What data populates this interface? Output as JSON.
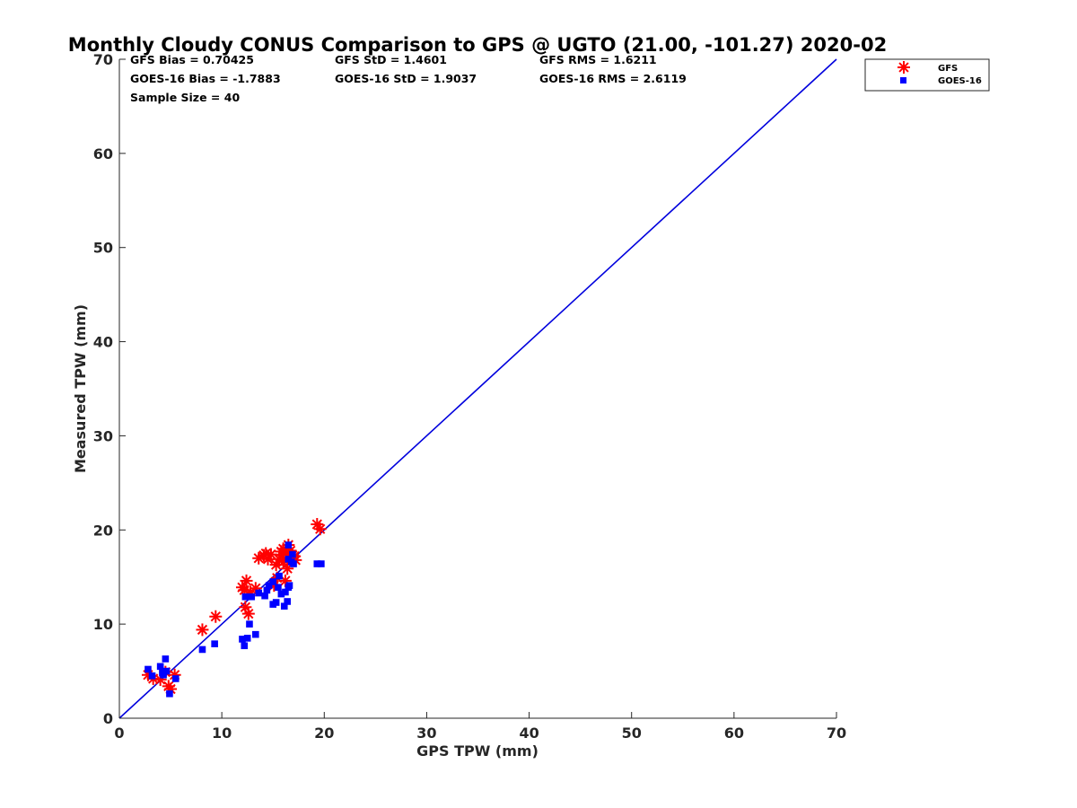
{
  "chart_data": {
    "type": "scatter",
    "title": "Monthly Cloudy CONUS Comparison to GPS @ UGTO (21.00, -101.27) 2020-02",
    "xlabel": "GPS TPW (mm)",
    "ylabel": "Measured TPW (mm)",
    "xlim": [
      0,
      70
    ],
    "ylim": [
      0,
      70
    ],
    "xticks": [
      0,
      10,
      20,
      30,
      40,
      50,
      60,
      70
    ],
    "yticks": [
      0,
      10,
      20,
      30,
      40,
      50,
      60,
      70
    ],
    "grid": false,
    "legend_position": "outside-top-right",
    "stats": [
      [
        "GFS Bias = 0.70425",
        "GFS StD = 1.4601",
        "GFS RMS = 1.6211"
      ],
      [
        "GOES-16 Bias = -1.7883",
        "GOES-16 StD = 1.9037",
        "GOES-16 RMS = 2.6119"
      ],
      [
        "Sample Size = 40"
      ]
    ],
    "reference_line": {
      "name": "1:1 line",
      "from": [
        0,
        0
      ],
      "to": [
        70,
        70
      ],
      "color": "#0000dd"
    },
    "series": [
      {
        "name": "GFS",
        "marker": "asterisk",
        "color": "#ff0000",
        "points": [
          [
            2.8,
            4.6
          ],
          [
            3.3,
            4.2
          ],
          [
            4.0,
            4.1
          ],
          [
            4.5,
            4.9
          ],
          [
            4.8,
            3.4
          ],
          [
            5.0,
            3.1
          ],
          [
            5.4,
            4.6
          ],
          [
            8.1,
            9.4
          ],
          [
            9.4,
            10.8
          ],
          [
            12.0,
            13.9
          ],
          [
            12.3,
            11.8
          ],
          [
            12.4,
            14.6
          ],
          [
            12.6,
            11.1
          ],
          [
            12.8,
            13.4
          ],
          [
            13.3,
            13.8
          ],
          [
            13.6,
            17.0
          ],
          [
            14.1,
            17.3
          ],
          [
            14.3,
            17.5
          ],
          [
            14.5,
            16.9
          ],
          [
            14.8,
            17.4
          ],
          [
            15.1,
            14.1
          ],
          [
            15.4,
            14.9
          ],
          [
            15.6,
            16.9
          ],
          [
            15.8,
            17.7
          ],
          [
            16.0,
            18.0
          ],
          [
            16.2,
            14.6
          ],
          [
            16.3,
            17.6
          ],
          [
            16.4,
            15.9
          ],
          [
            16.5,
            18.4
          ],
          [
            16.6,
            17.0
          ],
          [
            16.7,
            17.8
          ],
          [
            16.9,
            17.3
          ],
          [
            17.1,
            17.2
          ],
          [
            17.2,
            16.8
          ],
          [
            16.0,
            16.6
          ],
          [
            15.3,
            16.3
          ],
          [
            12.2,
            13.6
          ],
          [
            19.3,
            20.6
          ],
          [
            19.6,
            20.1
          ],
          [
            15.9,
            17.3
          ]
        ]
      },
      {
        "name": "GOES-16",
        "marker": "square",
        "color": "#0000ff",
        "points": [
          [
            2.8,
            5.2
          ],
          [
            3.2,
            4.5
          ],
          [
            4.0,
            5.5
          ],
          [
            4.2,
            4.8
          ],
          [
            4.5,
            6.3
          ],
          [
            4.6,
            5.0
          ],
          [
            4.9,
            2.6
          ],
          [
            5.5,
            4.2
          ],
          [
            8.1,
            7.3
          ],
          [
            9.3,
            7.9
          ],
          [
            12.0,
            8.4
          ],
          [
            12.2,
            7.7
          ],
          [
            12.3,
            12.9
          ],
          [
            12.5,
            8.5
          ],
          [
            12.7,
            10.0
          ],
          [
            13.3,
            8.9
          ],
          [
            13.6,
            13.3
          ],
          [
            14.2,
            13.0
          ],
          [
            14.4,
            13.6
          ],
          [
            15.0,
            12.1
          ],
          [
            15.3,
            12.3
          ],
          [
            15.5,
            13.9
          ],
          [
            15.8,
            13.2
          ],
          [
            16.1,
            11.9
          ],
          [
            16.2,
            13.4
          ],
          [
            16.4,
            12.4
          ],
          [
            16.5,
            13.9
          ],
          [
            16.6,
            14.1
          ],
          [
            16.5,
            16.9
          ],
          [
            16.8,
            16.6
          ],
          [
            17.0,
            16.4
          ],
          [
            19.3,
            16.4
          ],
          [
            19.7,
            16.4
          ],
          [
            16.5,
            18.4
          ],
          [
            15.6,
            15.1
          ],
          [
            15.0,
            14.5
          ],
          [
            14.6,
            14.1
          ],
          [
            12.9,
            12.9
          ],
          [
            16.9,
            17.4
          ],
          [
            4.3,
            4.6
          ]
        ]
      }
    ]
  }
}
